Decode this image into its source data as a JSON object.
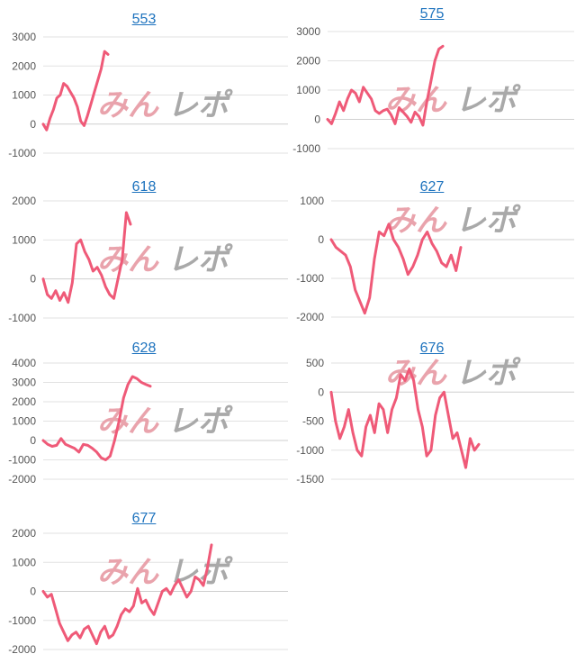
{
  "watermark": {
    "text_left": "みん",
    "text_right": "レポ",
    "color_left": "#e9a3ac",
    "color_right": "#a9a9a9"
  },
  "colors": {
    "line": "#ef5a78",
    "title_link": "#1e73be"
  },
  "chart_data": [
    {
      "type": "line",
      "title": "553",
      "ylim": [
        -1000,
        3000
      ],
      "yticks": [
        -1000,
        0,
        1000,
        2000,
        3000
      ],
      "values": [
        0,
        -200,
        200,
        500,
        900,
        1000,
        1400,
        1300,
        1100,
        900,
        600,
        100,
        -50,
        300,
        700,
        1100,
        1500,
        1900,
        2500,
        2400
      ]
    },
    {
      "type": "line",
      "title": "575",
      "ylim": [
        -1000,
        3000
      ],
      "yticks": [
        -1000,
        0,
        1000,
        2000,
        3000
      ],
      "values": [
        0,
        -150,
        200,
        600,
        300,
        700,
        1000,
        900,
        600,
        1100,
        900,
        700,
        300,
        200,
        300,
        350,
        150,
        -150,
        400,
        250,
        100,
        -100,
        250,
        100,
        -200,
        600,
        1300,
        2000,
        2400,
        2500
      ]
    },
    {
      "type": "line",
      "title": "618",
      "ylim": [
        -1000,
        2000
      ],
      "yticks": [
        -1000,
        0,
        1000,
        2000
      ],
      "values": [
        0,
        -400,
        -500,
        -300,
        -550,
        -350,
        -600,
        -100,
        900,
        1000,
        700,
        500,
        200,
        300,
        100,
        -200,
        -400,
        -500,
        0,
        500,
        1700,
        1400
      ]
    },
    {
      "type": "line",
      "title": "627",
      "ylim": [
        -2000,
        1000
      ],
      "yticks": [
        -2000,
        -1000,
        0,
        1000
      ],
      "values": [
        0,
        -200,
        -300,
        -400,
        -700,
        -1300,
        -1600,
        -1900,
        -1500,
        -500,
        200,
        100,
        400,
        0,
        -200,
        -500,
        -900,
        -700,
        -400,
        0,
        200,
        -100,
        -300,
        -600,
        -700,
        -400,
        -800,
        -200
      ]
    },
    {
      "type": "line",
      "title": "628",
      "ylim": [
        -2000,
        4000
      ],
      "yticks": [
        -2000,
        -1000,
        0,
        1000,
        2000,
        3000,
        4000
      ],
      "values": [
        0,
        -200,
        -300,
        -250,
        100,
        -200,
        -300,
        -400,
        -600,
        -200,
        -250,
        -400,
        -600,
        -900,
        -1000,
        -800,
        0,
        1000,
        2200,
        2900,
        3300,
        3200,
        3000,
        2900,
        2800
      ]
    },
    {
      "type": "line",
      "title": "676",
      "ylim": [
        -1500,
        500
      ],
      "yticks": [
        -1500,
        -1000,
        -500,
        0,
        500
      ],
      "values": [
        0,
        -500,
        -800,
        -600,
        -300,
        -700,
        -1000,
        -1100,
        -600,
        -400,
        -700,
        -200,
        -300,
        -700,
        -300,
        -100,
        300,
        200,
        400,
        200,
        -300,
        -600,
        -1100,
        -1000,
        -400,
        -100,
        0,
        -400,
        -800,
        -700,
        -1000,
        -1300,
        -800,
        -1000,
        -900
      ]
    },
    {
      "type": "line",
      "title": "677",
      "ylim": [
        -2000,
        2000
      ],
      "yticks": [
        -2000,
        -1000,
        0,
        1000,
        2000
      ],
      "values": [
        0,
        -200,
        -100,
        -600,
        -1100,
        -1400,
        -1700,
        -1500,
        -1400,
        -1600,
        -1300,
        -1200,
        -1500,
        -1800,
        -1400,
        -1200,
        -1600,
        -1500,
        -1200,
        -800,
        -600,
        -700,
        -500,
        100,
        -400,
        -300,
        -600,
        -800,
        -400,
        0,
        100,
        -100,
        200,
        400,
        100,
        -200,
        0,
        500,
        400,
        200,
        800,
        1600
      ]
    }
  ]
}
